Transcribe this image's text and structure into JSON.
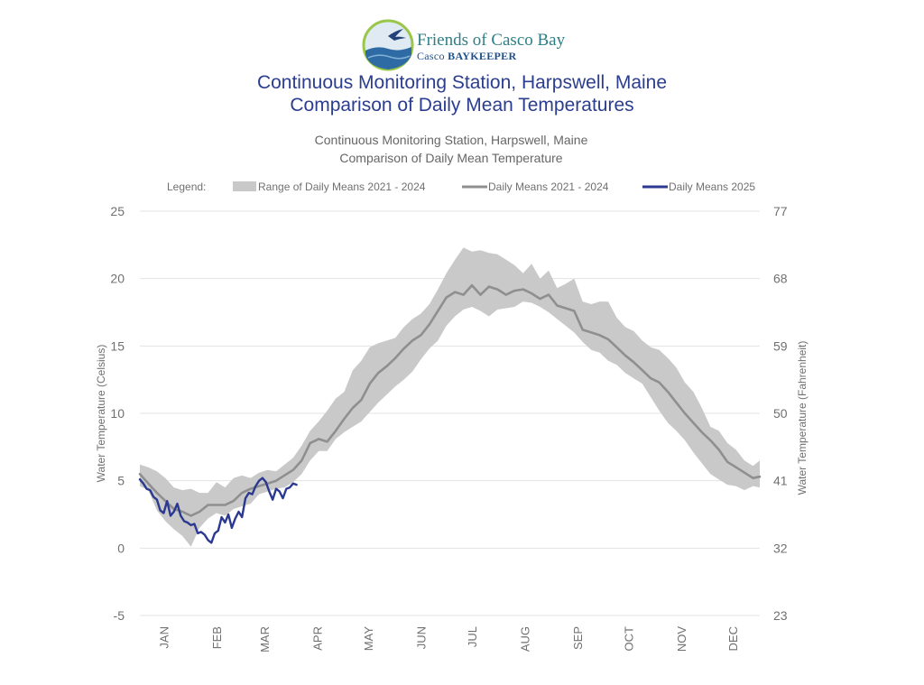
{
  "logo": {
    "name": "Friends of Casco Bay",
    "tagline_prefix": "Casco ",
    "tagline_emphasis": "BAYKEEPER",
    "icon": "seabird-over-waves-icon",
    "colors": {
      "ring": "#9ac64a",
      "water": "#2e6aa3",
      "sky": "#dfeaf2"
    }
  },
  "header": {
    "title_line1": "Continuous Monitoring Station, Harpswell, Maine",
    "title_line2": "Comparison of Daily Mean Temperatures"
  },
  "chart_data": {
    "type": "line",
    "subtitle_line1": "Continuous Monitoring Station, Harpswell, Maine",
    "subtitle_line2": "Comparison of Daily Mean Temperature",
    "legend_label": "Legend:",
    "legend_placement": "top",
    "ylabel": "Water Temperature (Celsius)",
    "ylabel_right": "Water Temperature (Fahrenheit)",
    "ylim": [
      -5,
      25
    ],
    "yticks": [
      -5,
      0,
      5,
      10,
      15,
      20,
      25
    ],
    "yticks_right": [
      23,
      32,
      41,
      50,
      59,
      68,
      77
    ],
    "xlim": [
      1,
      365
    ],
    "x_unit": "day of year",
    "month_ticks": [
      {
        "label": "JAN",
        "day": 15
      },
      {
        "label": "FEB",
        "day": 46
      },
      {
        "label": "MAR",
        "day": 74
      },
      {
        "label": "APR",
        "day": 105
      },
      {
        "label": "MAY",
        "day": 135
      },
      {
        "label": "JUN",
        "day": 166
      },
      {
        "label": "JUL",
        "day": 196
      },
      {
        "label": "AUG",
        "day": 227
      },
      {
        "label": "SEP",
        "day": 258
      },
      {
        "label": "OCT",
        "day": 288
      },
      {
        "label": "NOV",
        "day": 319
      },
      {
        "label": "DEC",
        "day": 349
      }
    ],
    "grid": true,
    "colors": {
      "band": "#c9c9c9",
      "mean": "#8f8f8f",
      "current": "#2b3990",
      "grid": "#e3e3e3",
      "text": "#707070"
    },
    "series": [
      {
        "name": "Range of Daily Means 2021 - 2024",
        "kind": "band",
        "x": [
          1,
          6,
          11,
          16,
          21,
          26,
          31,
          36,
          41,
          46,
          51,
          56,
          61,
          66,
          71,
          76,
          81,
          86,
          91,
          96,
          101,
          106,
          111,
          116,
          121,
          126,
          131,
          136,
          141,
          146,
          151,
          156,
          161,
          166,
          171,
          176,
          181,
          186,
          191,
          196,
          201,
          206,
          211,
          216,
          221,
          226,
          231,
          236,
          241,
          246,
          251,
          256,
          261,
          266,
          271,
          276,
          281,
          286,
          291,
          296,
          301,
          306,
          311,
          316,
          321,
          326,
          331,
          336,
          341,
          346,
          351,
          356,
          361,
          365
        ],
        "low": [
          4.6,
          4.3,
          2.8,
          2.0,
          1.4,
          0.9,
          0.1,
          1.5,
          2.2,
          2.6,
          2.4,
          2.9,
          3.1,
          3.3,
          4.0,
          4.2,
          4.4,
          4.5,
          4.9,
          5.5,
          6.5,
          7.2,
          7.2,
          8.1,
          8.6,
          9.0,
          9.4,
          10.1,
          10.8,
          11.4,
          12.0,
          12.5,
          13.1,
          14.0,
          14.8,
          15.4,
          16.5,
          17.2,
          17.7,
          17.9,
          17.6,
          17.2,
          17.7,
          17.8,
          17.9,
          18.3,
          18.2,
          17.9,
          17.5,
          17.0,
          16.5,
          16.0,
          15.3,
          14.7,
          14.5,
          13.9,
          13.6,
          13.0,
          12.6,
          12.2,
          11.2,
          10.2,
          9.3,
          8.7,
          8.0,
          7.1,
          6.3,
          5.5,
          5.1,
          4.7,
          4.6,
          4.3,
          4.6,
          4.5
        ],
        "high": [
          6.2,
          6.0,
          5.7,
          5.2,
          4.5,
          4.3,
          4.4,
          4.1,
          4.1,
          4.9,
          4.5,
          5.2,
          5.4,
          5.2,
          5.6,
          5.8,
          5.7,
          6.2,
          6.7,
          7.6,
          8.7,
          9.4,
          10.2,
          11.1,
          11.6,
          13.2,
          13.9,
          14.9,
          15.2,
          15.4,
          15.6,
          16.4,
          17.0,
          17.4,
          18.1,
          19.2,
          20.4,
          21.4,
          22.3,
          22.0,
          22.1,
          21.9,
          21.8,
          21.4,
          21.0,
          20.4,
          21.1,
          20.0,
          20.6,
          19.3,
          19.6,
          20.0,
          18.3,
          18.1,
          18.3,
          18.3,
          17.1,
          16.4,
          16.1,
          15.4,
          14.9,
          14.7,
          14.1,
          13.4,
          12.3,
          11.6,
          10.4,
          9.0,
          8.7,
          7.8,
          7.3,
          6.5,
          6.1,
          6.5
        ]
      },
      {
        "name": "Daily Means 2021 - 2024",
        "kind": "line",
        "x": [
          1,
          6,
          11,
          16,
          21,
          26,
          31,
          36,
          41,
          46,
          51,
          56,
          61,
          66,
          71,
          76,
          81,
          86,
          91,
          96,
          101,
          106,
          111,
          116,
          121,
          126,
          131,
          136,
          141,
          146,
          151,
          156,
          161,
          166,
          171,
          176,
          181,
          186,
          191,
          196,
          201,
          206,
          211,
          216,
          221,
          226,
          231,
          236,
          241,
          246,
          251,
          256,
          261,
          266,
          271,
          276,
          281,
          286,
          291,
          296,
          301,
          306,
          311,
          316,
          321,
          326,
          331,
          336,
          341,
          346,
          351,
          356,
          361,
          365
        ],
        "y": [
          5.5,
          4.8,
          4.1,
          3.5,
          2.9,
          2.7,
          2.4,
          2.7,
          3.2,
          3.2,
          3.2,
          3.5,
          4.1,
          4.4,
          4.6,
          4.8,
          5.0,
          5.4,
          5.8,
          6.5,
          7.8,
          8.1,
          7.9,
          8.7,
          9.6,
          10.4,
          11.0,
          12.2,
          13.0,
          13.5,
          14.1,
          14.8,
          15.4,
          15.8,
          16.6,
          17.6,
          18.6,
          19.0,
          18.8,
          19.5,
          18.8,
          19.4,
          19.2,
          18.8,
          19.1,
          19.2,
          18.9,
          18.5,
          18.8,
          18.0,
          17.8,
          17.6,
          16.2,
          16.0,
          15.8,
          15.5,
          14.9,
          14.3,
          13.8,
          13.2,
          12.6,
          12.3,
          11.6,
          10.8,
          10.0,
          9.3,
          8.6,
          8.0,
          7.3,
          6.4,
          6.0,
          5.6,
          5.2,
          5.3
        ]
      },
      {
        "name": "Daily Means 2025",
        "kind": "line",
        "x": [
          1,
          3,
          5,
          7,
          9,
          11,
          13,
          15,
          17,
          19,
          21,
          23,
          25,
          27,
          29,
          31,
          33,
          35,
          37,
          39,
          41,
          43,
          45,
          47,
          49,
          51,
          53,
          55,
          57,
          59,
          61,
          63,
          65,
          67,
          69,
          71,
          73,
          75,
          77,
          79,
          81,
          83,
          85,
          87,
          89,
          91,
          93
        ],
        "y": [
          5.1,
          4.8,
          4.4,
          4.3,
          3.8,
          3.6,
          2.8,
          2.6,
          3.5,
          2.4,
          2.7,
          3.3,
          2.4,
          2.0,
          1.9,
          1.7,
          1.8,
          1.1,
          1.2,
          1.0,
          0.6,
          0.4,
          1.1,
          1.3,
          2.3,
          1.9,
          2.5,
          1.5,
          2.2,
          2.7,
          2.3,
          3.7,
          4.1,
          4.0,
          4.6,
          5.0,
          5.2,
          4.9,
          4.2,
          3.6,
          4.4,
          4.2,
          3.7,
          4.4,
          4.5,
          4.8,
          4.7
        ]
      }
    ]
  }
}
